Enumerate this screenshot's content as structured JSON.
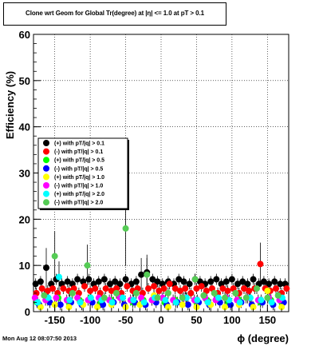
{
  "title": "Clone wrt Geom for Global Tr(degree) at |η| <= 1.0 at pT > 0.1",
  "date_stamp": "Mon Aug 12 08:07:50 2013",
  "chart_data": {
    "type": "scatter",
    "xlabel": "ϕ (degree)",
    "ylabel": "Efficiency (%)",
    "xlim": [
      -180,
      180
    ],
    "ylim": [
      0,
      60
    ],
    "x_ticks": [
      -150,
      -100,
      -50,
      0,
      50,
      100,
      150
    ],
    "y_ticks": [
      0,
      10,
      20,
      30,
      40,
      50,
      60
    ],
    "grid": true,
    "legend_position": "middle-left",
    "series": [
      {
        "name": "(+) with pT/|q| > 0.1",
        "color": "#000000",
        "x": [
          -177,
          -170,
          -162,
          -155,
          -148,
          -140,
          -132,
          -125,
          -118,
          -110,
          -102,
          -95,
          -88,
          -80,
          -72,
          -65,
          -58,
          -50,
          -42,
          -35,
          -28,
          -20,
          -12,
          -5,
          2,
          10,
          18,
          25,
          32,
          40,
          48,
          55,
          62,
          70,
          78,
          85,
          92,
          100,
          108,
          115,
          122,
          130,
          138,
          145,
          152,
          160,
          168,
          175
        ],
        "y": [
          6,
          6.5,
          9.5,
          6,
          7,
          6,
          6.5,
          6,
          7,
          6.5,
          7,
          6,
          6.5,
          7,
          6,
          6.5,
          6,
          7,
          6,
          6.5,
          8,
          8.5,
          7,
          6.5,
          6,
          6.5,
          6,
          7,
          6.5,
          6,
          7,
          6.5,
          6,
          6.5,
          7,
          6,
          6.5,
          7,
          6,
          6.5,
          6,
          7,
          6,
          6.5,
          6,
          6.5,
          6,
          6
        ]
      },
      {
        "name": "(-) with pT/|q| > 0.1",
        "color": "#ff0000",
        "x": [
          -176,
          -168,
          -160,
          -153,
          -146,
          -138,
          -130,
          -123,
          -116,
          -108,
          -100,
          -93,
          -86,
          -78,
          -70,
          -63,
          -56,
          -48,
          -40,
          -33,
          -26,
          -18,
          -10,
          -3,
          4,
          12,
          20,
          27,
          34,
          42,
          50,
          57,
          64,
          72,
          80,
          87,
          94,
          102,
          110,
          117,
          124,
          132,
          140,
          147,
          154,
          162,
          170,
          177
        ],
        "y": [
          4,
          5,
          4.5,
          5,
          4,
          5,
          4.5,
          5,
          4,
          5.5,
          4.5,
          5,
          4,
          5,
          4.5,
          5,
          4,
          5.5,
          4.5,
          5,
          4,
          5,
          5.5,
          4.5,
          5,
          6,
          5,
          4.5,
          5,
          4,
          5,
          5.5,
          4.5,
          5,
          4,
          5,
          4.5,
          5,
          4,
          5,
          4.5,
          5,
          10.3,
          5,
          4.5,
          5,
          4,
          5
        ]
      },
      {
        "name": "(+) with pT/|q| > 0.5",
        "color": "#00ff00",
        "x": [
          -175,
          -160,
          -145,
          -130,
          -115,
          -100,
          -85,
          -70,
          -55,
          -40,
          -25,
          -10,
          5,
          20,
          35,
          50,
          65,
          80,
          95,
          110,
          125,
          140,
          155,
          170
        ],
        "y": [
          2,
          2.5,
          3,
          2,
          2.5,
          3,
          2,
          2.5,
          3,
          2,
          2.5,
          3,
          2,
          2.5,
          3,
          2,
          2.5,
          3,
          2,
          2.5,
          3,
          2,
          2.5,
          2
        ]
      },
      {
        "name": "(-) with pT/|q| > 0.5",
        "color": "#0000ff",
        "x": [
          -172,
          -157,
          -142,
          -127,
          -112,
          -97,
          -82,
          -67,
          -52,
          -37,
          -22,
          -7,
          8,
          23,
          38,
          53,
          68,
          83,
          98,
          113,
          128,
          143,
          158,
          173
        ],
        "y": [
          1.5,
          2,
          1.5,
          2,
          1.5,
          2,
          1.5,
          2,
          1.5,
          2,
          1.5,
          2,
          1.5,
          2,
          1.5,
          2,
          1.5,
          2,
          1.5,
          2,
          1.5,
          2,
          1.5,
          2
        ]
      },
      {
        "name": "(+) with pT/|q| > 1.0",
        "color": "#ffff00",
        "x": [
          -170,
          -150,
          -130,
          -110,
          -90,
          -70,
          -50,
          -30,
          -10,
          10,
          30,
          50,
          70,
          90,
          110,
          130,
          150,
          170
        ],
        "y": [
          1,
          1.5,
          1,
          1.5,
          1,
          1.5,
          1,
          1.5,
          3.5,
          1,
          1.5,
          1,
          1.5,
          1,
          1.5,
          1,
          4.5,
          1
        ]
      },
      {
        "name": "(-) with pT/|q| > 1.0",
        "color": "#ff00ff",
        "x": [
          -178,
          -163,
          -148,
          -133,
          -118,
          -103,
          -88,
          -73,
          -58,
          -43,
          -28,
          -13,
          2,
          17,
          32,
          47,
          62,
          77,
          92,
          107,
          122,
          137,
          152,
          167
        ],
        "y": [
          3,
          2.5,
          3,
          2.5,
          3,
          2.5,
          3,
          2.5,
          3,
          2.5,
          3,
          2.5,
          3,
          2.5,
          3,
          2.5,
          3,
          2.5,
          3,
          2.5,
          3,
          2.5,
          3,
          2.5
        ]
      },
      {
        "name": "(+) with pT/|q| > 2.0",
        "color": "#00ffff",
        "x": [
          -174,
          -159,
          -144,
          -129,
          -114,
          -99,
          -84,
          -69,
          -54,
          -39,
          -24,
          -9,
          6,
          21,
          36,
          51,
          66,
          81,
          96,
          111,
          126,
          141,
          156,
          171
        ],
        "y": [
          2,
          3,
          7.5,
          2.5,
          2,
          3,
          2.5,
          2,
          3,
          2.5,
          2,
          3,
          2.5,
          2,
          3,
          2.5,
          2,
          3,
          2.5,
          2,
          3,
          2.5,
          2,
          3
        ]
      },
      {
        "name": "(-) with pT/|q| > 2.0",
        "color": "#55cc55",
        "x": [
          -165,
          -150,
          -125,
          -104,
          -80,
          -63,
          -50,
          -35,
          -20,
          -5,
          10,
          30,
          48,
          60,
          75,
          90,
          105,
          120,
          135,
          150,
          165
        ],
        "y": [
          3.5,
          12,
          4,
          10,
          3,
          4,
          18,
          4,
          8,
          3,
          4,
          3,
          7,
          3.5,
          4,
          3,
          4,
          3,
          5,
          3,
          3.5
        ]
      }
    ]
  }
}
